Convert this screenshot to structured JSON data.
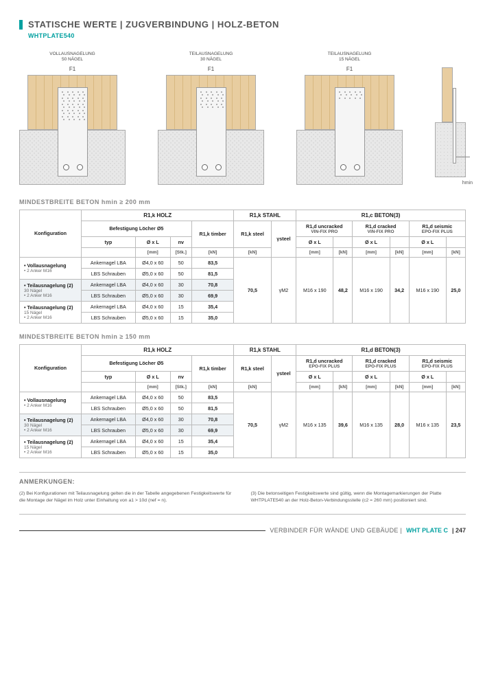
{
  "header": {
    "title": "STATISCHE WERTE | ZUGVERBINDUNG | HOLZ-BETON",
    "subtitle": "WHTPLATE540"
  },
  "diagrams": [
    {
      "label_line1": "VOLLAUSNAGELUNG",
      "label_line2": "50 NÄGEL",
      "f": "F1",
      "nail_rows": 10
    },
    {
      "label_line1": "TEILAUSNAGELUNG",
      "label_line2": "30 NÄGEL",
      "f": "F1",
      "nail_rows": 6
    },
    {
      "label_line1": "TEILAUSNAGELUNG",
      "label_line2": "15 NÄGEL",
      "f": "F1",
      "nail_rows": 3
    }
  ],
  "hmin_label": "hmin",
  "table1": {
    "section": "MINDESTBREITE BETON hmin ≥ 200 mm",
    "colgroups": {
      "holz": "R1,k HOLZ",
      "stahl": "R1,k STAHL",
      "beton": "R1,c BETON(3)"
    },
    "headers": {
      "config": "Konfiguration",
      "befest": "Befestigung Löcher Ø5",
      "typ": "typ",
      "oxl": "Ø x L",
      "nv": "nv",
      "r1k_timber": "R1,k timber",
      "r1k_steel": "R1,k steel",
      "r1d_unc": "R1,d uncracked",
      "r1d_cr": "R1,d cracked",
      "r1d_seis": "R1,d seismic",
      "anchor_unc": "VIN-FIX PRO",
      "anchor_cr": "VIN-FIX PRO",
      "anchor_seis": "EPO-FIX PLUS",
      "oxl_anchor": "Ø x L",
      "units": {
        "mm": "[mm]",
        "stk": "[Stk.]",
        "kn": "[kN]"
      },
      "ysteel": "γsteel"
    },
    "rows": [
      {
        "cfg_title": "• Vollausnagelung",
        "cfg_sub1": "",
        "cfg_sub2": "• 2 Anker M16",
        "typ": "Ankernagel LBA",
        "oxl": "Ø4,0 x 60",
        "nv": "50",
        "r1k": "83,5"
      },
      {
        "typ": "LBS Schrauben",
        "oxl": "Ø5,0 x 60",
        "nv": "50",
        "r1k": "81,5"
      },
      {
        "hl": true,
        "cfg_title": "• Teilausnagelung (2)",
        "cfg_sub1": "30 Nägel",
        "cfg_sub2": "• 2 Anker M16",
        "typ": "Ankernagel LBA",
        "oxl": "Ø4,0 x 60",
        "nv": "30",
        "r1k": "70,8"
      },
      {
        "hl": true,
        "typ": "LBS Schrauben",
        "oxl": "Ø5,0 x 60",
        "nv": "30",
        "r1k": "69,9"
      },
      {
        "cfg_title": "• Teilausnagelung (2)",
        "cfg_sub1": "15 Nägel",
        "cfg_sub2": "• 2 Anker M16",
        "typ": "Ankernagel LBA",
        "oxl": "Ø4,0 x 60",
        "nv": "15",
        "r1k": "35,4"
      },
      {
        "typ": "LBS Schrauben",
        "oxl": "Ø5,0 x 60",
        "nv": "15",
        "r1k": "35,0"
      }
    ],
    "shared": {
      "steel_kn": "70,5",
      "ysteel": "γM2",
      "unc_oxl": "M16 x 190",
      "unc_kn": "48,2",
      "cr_oxl": "M16 x 190",
      "cr_kn": "34,2",
      "seis_oxl": "M16 x 190",
      "seis_kn": "25,0"
    }
  },
  "table2": {
    "section": "MINDESTBREITE BETON hmin ≥ 150 mm",
    "colgroups": {
      "holz": "R1,k HOLZ",
      "stahl": "R1,k STAHL",
      "beton": "R1,d BETON(3)"
    },
    "headers": {
      "anchor_unc": "EPO-FIX PLUS",
      "anchor_cr": "EPO-FIX PLUS",
      "anchor_seis": "EPO-FIX PLUS"
    },
    "rows": [
      {
        "cfg_title": "• Vollausnagelung",
        "cfg_sub1": "",
        "cfg_sub2": "• 2 Anker M16",
        "typ": "Ankernagel LBA",
        "oxl": "Ø4,0 x 60",
        "nv": "50",
        "r1k": "83,5"
      },
      {
        "typ": "LBS Schrauben",
        "oxl": "Ø5,0 x 60",
        "nv": "50",
        "r1k": "81,5"
      },
      {
        "hl": true,
        "cfg_title": "• Teilausnagelung (2)",
        "cfg_sub1": "30 Nägel",
        "cfg_sub2": "• 2 Anker M16",
        "typ": "Ankernagel LBA",
        "oxl": "Ø4,0 x 60",
        "nv": "30",
        "r1k": "70,8"
      },
      {
        "hl": true,
        "typ": "LBS Schrauben",
        "oxl": "Ø5,0 x 60",
        "nv": "30",
        "r1k": "69,9"
      },
      {
        "cfg_title": "• Teilausnagelung (2)",
        "cfg_sub1": "15 Nägel",
        "cfg_sub2": "• 2 Anker M16",
        "typ": "Ankernagel LBA",
        "oxl": "Ø4,0 x 60",
        "nv": "15",
        "r1k": "35,4"
      },
      {
        "typ": "LBS Schrauben",
        "oxl": "Ø5,0 x 60",
        "nv": "15",
        "r1k": "35,0"
      }
    ],
    "shared": {
      "steel_kn": "70,5",
      "ysteel": "γM2",
      "unc_oxl": "M16 x 135",
      "unc_kn": "39,6",
      "cr_oxl": "M16 x 135",
      "cr_kn": "28,0",
      "seis_oxl": "M16 x 135",
      "seis_kn": "23,5"
    }
  },
  "notes": {
    "title": "ANMERKUNGEN:",
    "n2": "(2) Bei Konfigurationen mit Teilausnagelung gelten die in der Tabelle angegebenen Festigkeitswerte für die Montage der Nägel im Holz unter Einhaltung von a1 > 10d (nef = n).",
    "n3": "(3) Die betonseitigen Festigkeitswerte sind gültig, wenn die Montagemarkierungen der Platte WHTPLATE540 an der Holz-Beton-Verbindungsstelle (c2 = 260 mm) positioniert sind."
  },
  "footer": {
    "text": "VERBINDER FÜR WÄNDE UND GEBÄUDE  |  ",
    "brand": "WHT PLATE C",
    "page": "| 247"
  },
  "colors": {
    "accent": "#00a0a0",
    "wood": "#e8cda0",
    "concrete": "#e8e8e8",
    "highlight": "#eef2f5",
    "border": "#bbbbbb"
  }
}
